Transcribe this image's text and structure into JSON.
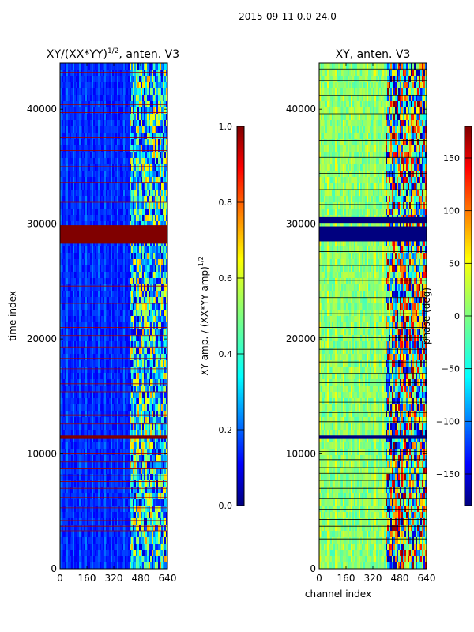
{
  "suptitle": "2015-09-11 0.0-24.0",
  "colors": {
    "jet": [
      "#00007f",
      "#0000ff",
      "#007fff",
      "#00ffff",
      "#7fff7f",
      "#ffff00",
      "#ff7f00",
      "#ff0000",
      "#7f0000"
    ],
    "flag_line_amp": "#a00000",
    "flag_line_phase": "#000000",
    "flag_band_amp": "#800000",
    "flag_band_phase": "#00007f"
  },
  "chart_data": [
    {
      "type": "heatmap",
      "title_main": "XY/(XX*YY)",
      "title_sup": "1/2",
      "title_tail": ", anten. V3",
      "xlabel": "",
      "ylabel": "time index",
      "xlim": [
        0,
        640
      ],
      "ylim": [
        0,
        44000
      ],
      "xticks": [
        0,
        160,
        320,
        480,
        640
      ],
      "yticks": [
        0,
        10000,
        20000,
        30000,
        40000
      ],
      "active_channel_range": [
        410,
        640
      ],
      "flagged_bands": [
        [
          28300,
          29900
        ],
        [
          11300,
          11600
        ]
      ],
      "flagged_rows": [
        3300,
        3700,
        4200,
        5300,
        6200,
        7000,
        7600,
        8100,
        8700,
        9300,
        10000,
        12600,
        13400,
        14600,
        15400,
        16100,
        17400,
        18300,
        19300,
        20300,
        21000,
        23100,
        24600,
        26100,
        27400,
        31900,
        33600,
        35000,
        36400,
        37500,
        39700,
        40400,
        42100,
        43200
      ],
      "colorbar": {
        "label_main": "XY amp. / (XX*YY amp)",
        "label_sup": "1/2",
        "range": [
          0.0,
          1.0
        ],
        "ticks": [
          "0.0",
          "0.2",
          "0.4",
          "0.6",
          "0.8",
          "1.0"
        ],
        "tick_values": [
          0.0,
          0.2,
          0.4,
          0.6,
          0.8,
          1.0
        ]
      }
    },
    {
      "type": "heatmap",
      "title_main": "XY, anten. V3",
      "xlabel": "channel index",
      "ylabel": "",
      "xlim": [
        0,
        640
      ],
      "ylim": [
        0,
        44000
      ],
      "xticks": [
        0,
        160,
        320,
        480,
        640
      ],
      "yticks": [
        0,
        10000,
        20000,
        30000,
        40000
      ],
      "active_channel_range": [
        400,
        640
      ],
      "flagged_bands": [
        [
          28500,
          29800
        ],
        [
          11300,
          11600
        ],
        [
          30100,
          30600
        ]
      ],
      "flagged_rows": [
        2600,
        3200,
        3700,
        4300,
        5200,
        6100,
        7000,
        7700,
        8300,
        8800,
        9500,
        10200,
        12800,
        13600,
        14500,
        15300,
        16200,
        17000,
        18000,
        19100,
        20100,
        21000,
        22200,
        23600,
        25100,
        26400,
        27600,
        31700,
        33000,
        34400,
        35800,
        37300,
        39600,
        41200,
        42500,
        43500
      ],
      "colorbar": {
        "label_main": "phase (deg)",
        "range": [
          -180,
          180
        ],
        "ticks": [
          "−150",
          "−100",
          "−50",
          "0",
          "50",
          "100",
          "150"
        ],
        "tick_values": [
          -150,
          -100,
          -50,
          0,
          50,
          100,
          150
        ]
      }
    }
  ]
}
